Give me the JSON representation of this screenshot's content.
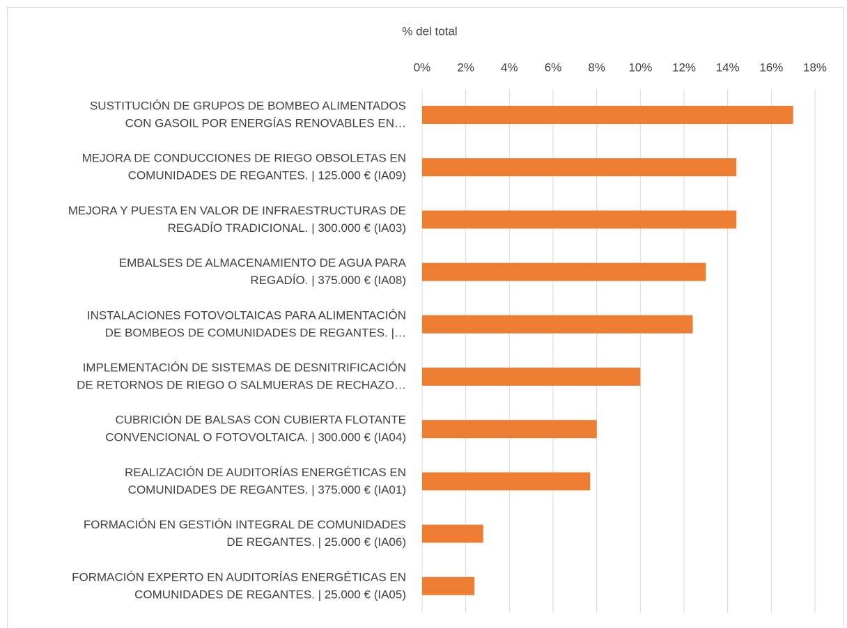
{
  "chart_data": {
    "type": "bar",
    "orientation": "horizontal",
    "x_label": "% del total",
    "categories": [
      [
        "SUSTITUCIÓN DE GRUPOS DE BOMBEO ALIMENTADOS",
        "CON GASOIL POR ENERGÍAS RENOVABLES EN…"
      ],
      [
        "MEJORA DE CONDUCCIONES DE RIEGO OBSOLETAS EN",
        "COMUNIDADES DE REGANTES. | 125.000 € (IA09)"
      ],
      [
        "MEJORA Y PUESTA EN VALOR DE INFRAESTRUCTURAS DE",
        "REGADÍO TRADICIONAL. | 300.000 € (IA03)"
      ],
      [
        "EMBALSES DE ALMACENAMIENTO DE AGUA PARA",
        "REGADÍO. | 375.000 € (IA08)"
      ],
      [
        "INSTALACIONES FOTOVOLTAICAS PARA ALIMENTACIÓN",
        "DE BOMBEOS DE COMUNIDADES DE REGANTES. |…"
      ],
      [
        "IMPLEMENTACIÓN DE SISTEMAS DE DESNITRIFICACIÓN",
        "DE RETORNOS DE RIEGO O SALMUERAS DE RECHAZO…"
      ],
      [
        "CUBRICIÓN DE BALSAS CON CUBIERTA FLOTANTE",
        "CONVENCIONAL O FOTOVOLTAICA. | 300.000 € (IA04)"
      ],
      [
        "REALIZACIÓN DE AUDITORÍAS ENERGÉTICAS EN",
        "COMUNIDADES DE REGANTES. | 375.000 € (IA01)"
      ],
      [
        "FORMACIÓN EN GESTIÓN INTEGRAL DE COMUNIDADES",
        "DE REGANTES. | 25.000 € (IA06)"
      ],
      [
        "FORMACIÓN EXPERTO EN AUDITORÍAS ENERGÉTICAS EN",
        "COMUNIDADES DE REGANTES. | 25.000 € (IA05)"
      ]
    ],
    "values": [
      17.0,
      14.4,
      14.4,
      13.0,
      12.4,
      10.0,
      8.0,
      7.7,
      2.8,
      2.4
    ],
    "color": "#ed7d31",
    "xlim": [
      0,
      18
    ],
    "xticks": [
      {
        "value": 0,
        "label": "0%"
      },
      {
        "value": 2,
        "label": "2%"
      },
      {
        "value": 4,
        "label": "4%"
      },
      {
        "value": 6,
        "label": "6%"
      },
      {
        "value": 8,
        "label": "8%"
      },
      {
        "value": 10,
        "label": "10%"
      },
      {
        "value": 12,
        "label": "12%"
      },
      {
        "value": 14,
        "label": "14%"
      },
      {
        "value": 16,
        "label": "16%"
      },
      {
        "value": 18,
        "label": "18%"
      }
    ],
    "grid": true
  }
}
